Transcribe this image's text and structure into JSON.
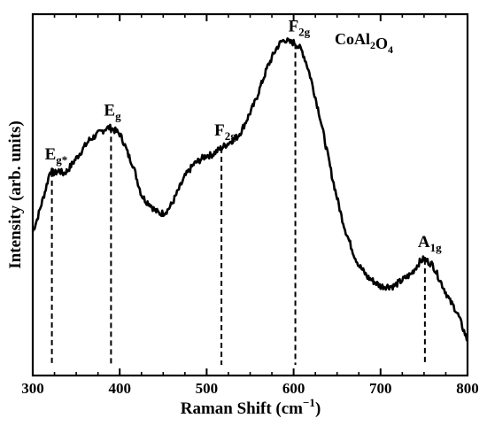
{
  "chart_data": {
    "type": "line",
    "xlabel": "Raman Shift (cm",
    "xlabel_sup": "−1",
    "xlabel_end": ")",
    "ylabel": "Intensity (arb. units)",
    "xlim": [
      300,
      800
    ],
    "ylim": [
      0,
      1
    ],
    "x_ticks": [
      300,
      400,
      500,
      600,
      700,
      800
    ],
    "x_tick_labels": [
      "300",
      "400",
      "500",
      "600",
      "700",
      "800"
    ],
    "y_ticks_shown": false,
    "grid": false,
    "series_label": {
      "parts": [
        {
          "text": "CoAl",
          "sub": false
        },
        {
          "text": "2",
          "sub": true
        },
        {
          "text": "O",
          "sub": false
        },
        {
          "text": "4",
          "sub": true
        }
      ]
    },
    "peaks": [
      {
        "main": "E",
        "sub": "g*",
        "x": 322
      },
      {
        "main": "E",
        "sub": "g",
        "x": 390
      },
      {
        "main": "F",
        "sub": "2g",
        "x": 517
      },
      {
        "main": "F",
        "sub": "2g",
        "x": 602
      },
      {
        "main": "A",
        "sub": "1g",
        "x": 751
      }
    ],
    "series": [
      {
        "x": [
          300,
          305,
          310,
          315,
          320,
          325,
          330,
          335,
          340,
          345,
          350,
          355,
          360,
          365,
          370,
          375,
          380,
          385,
          390,
          395,
          400,
          405,
          410,
          415,
          420,
          425,
          430,
          435,
          440,
          445,
          450,
          455,
          460,
          465,
          470,
          475,
          480,
          485,
          490,
          495,
          500,
          505,
          510,
          515,
          520,
          525,
          530,
          535,
          540,
          545,
          550,
          555,
          560,
          565,
          570,
          575,
          580,
          585,
          590,
          595,
          600,
          605,
          610,
          615,
          620,
          625,
          630,
          635,
          640,
          645,
          650,
          655,
          660,
          665,
          670,
          675,
          680,
          685,
          690,
          695,
          700,
          705,
          710,
          715,
          720,
          725,
          730,
          735,
          740,
          745,
          750,
          755,
          760,
          765,
          770,
          775,
          780,
          785,
          790,
          795,
          800
        ],
        "y": [
          0.38,
          0.42,
          0.47,
          0.52,
          0.58,
          0.57,
          0.58,
          0.57,
          0.58,
          0.6,
          0.62,
          0.64,
          0.66,
          0.68,
          0.69,
          0.7,
          0.71,
          0.72,
          0.72,
          0.71,
          0.7,
          0.67,
          0.63,
          0.6,
          0.55,
          0.5,
          0.48,
          0.47,
          0.45,
          0.44,
          0.44,
          0.45,
          0.47,
          0.5,
          0.53,
          0.56,
          0.58,
          0.6,
          0.61,
          0.62,
          0.63,
          0.63,
          0.64,
          0.65,
          0.66,
          0.67,
          0.68,
          0.69,
          0.71,
          0.74,
          0.77,
          0.8,
          0.84,
          0.88,
          0.92,
          0.95,
          0.98,
          1.0,
          1.01,
          1.0,
          1.0,
          0.99,
          0.97,
          0.93,
          0.88,
          0.82,
          0.76,
          0.69,
          0.62,
          0.55,
          0.49,
          0.43,
          0.38,
          0.34,
          0.3,
          0.27,
          0.25,
          0.23,
          0.22,
          0.21,
          0.2,
          0.2,
          0.2,
          0.2,
          0.21,
          0.22,
          0.23,
          0.24,
          0.26,
          0.28,
          0.29,
          0.28,
          0.27,
          0.24,
          0.21,
          0.18,
          0.15,
          0.13,
          0.1,
          0.06,
          0.02
        ]
      }
    ]
  }
}
